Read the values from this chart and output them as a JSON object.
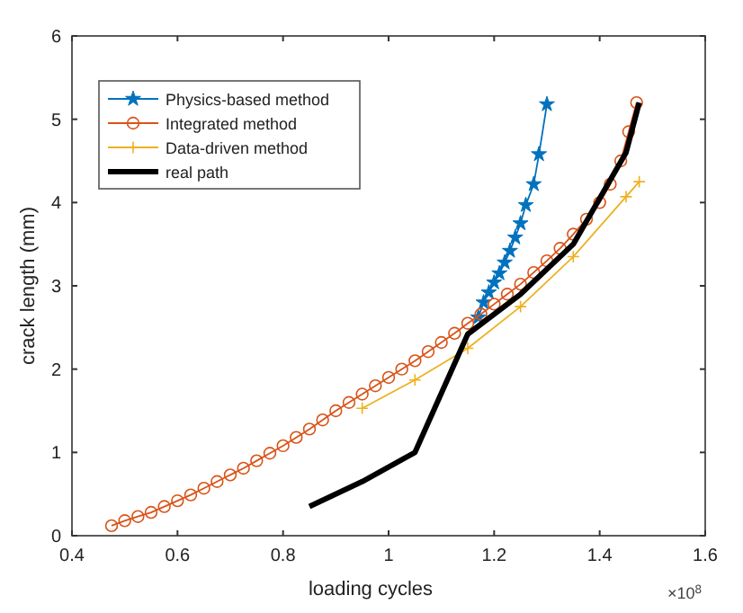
{
  "chart_data": {
    "type": "line",
    "xlabel": "loading cycles",
    "ylabel": "crack length (mm)",
    "annotations": [
      "×10$^{8}$"
    ],
    "xlim": [
      0.4,
      1.6
    ],
    "ylim": [
      0,
      6
    ],
    "xticks": [
      0.4,
      0.6,
      0.8,
      1,
      1.2,
      1.4,
      1.6
    ],
    "yticks": [
      0,
      1,
      2,
      3,
      4,
      5,
      6
    ],
    "grid": false,
    "legend": "top left",
    "series": [
      {
        "name": "Physics-based method",
        "color": "#0072bd",
        "marker": "star",
        "x": [
          1.17,
          1.18,
          1.19,
          1.2,
          1.21,
          1.22,
          1.23,
          1.24,
          1.25,
          1.26,
          1.275,
          1.285,
          1.3
        ],
        "values": [
          2.62,
          2.8,
          2.92,
          3.04,
          3.15,
          3.28,
          3.42,
          3.58,
          3.75,
          3.97,
          4.22,
          4.58,
          5.18
        ]
      },
      {
        "name": "Integrated method",
        "color": "#d95319",
        "marker": "circle",
        "x": [
          0.475,
          0.5,
          0.525,
          0.55,
          0.575,
          0.6,
          0.625,
          0.65,
          0.675,
          0.7,
          0.725,
          0.75,
          0.775,
          0.8,
          0.825,
          0.85,
          0.875,
          0.9,
          0.925,
          0.95,
          0.975,
          1.0,
          1.025,
          1.05,
          1.075,
          1.1,
          1.125,
          1.15,
          1.175,
          1.2,
          1.225,
          1.25,
          1.275,
          1.3,
          1.325,
          1.35,
          1.375,
          1.4,
          1.42,
          1.44,
          1.455,
          1.47
        ],
        "values": [
          0.12,
          0.18,
          0.23,
          0.28,
          0.35,
          0.42,
          0.49,
          0.57,
          0.65,
          0.73,
          0.81,
          0.9,
          0.99,
          1.08,
          1.18,
          1.28,
          1.39,
          1.5,
          1.6,
          1.7,
          1.8,
          1.9,
          2.0,
          2.1,
          2.21,
          2.32,
          2.43,
          2.55,
          2.66,
          2.78,
          2.9,
          3.02,
          3.16,
          3.3,
          3.45,
          3.62,
          3.8,
          4.0,
          4.22,
          4.5,
          4.85,
          5.2
        ]
      },
      {
        "name": "Data-driven method",
        "color": "#edb120",
        "marker": "cross",
        "x": [
          0.95,
          1.05,
          1.15,
          1.25,
          1.35,
          1.45,
          1.475
        ],
        "values": [
          1.53,
          1.87,
          2.25,
          2.75,
          3.35,
          4.07,
          4.25
        ]
      },
      {
        "name": "real path",
        "color": "#000000",
        "marker": "none",
        "x": [
          0.85,
          0.95,
          1.05,
          1.15,
          1.25,
          1.35,
          1.45,
          1.475
        ],
        "values": [
          0.35,
          0.65,
          1.0,
          2.42,
          2.9,
          3.5,
          4.6,
          5.2
        ]
      }
    ]
  }
}
